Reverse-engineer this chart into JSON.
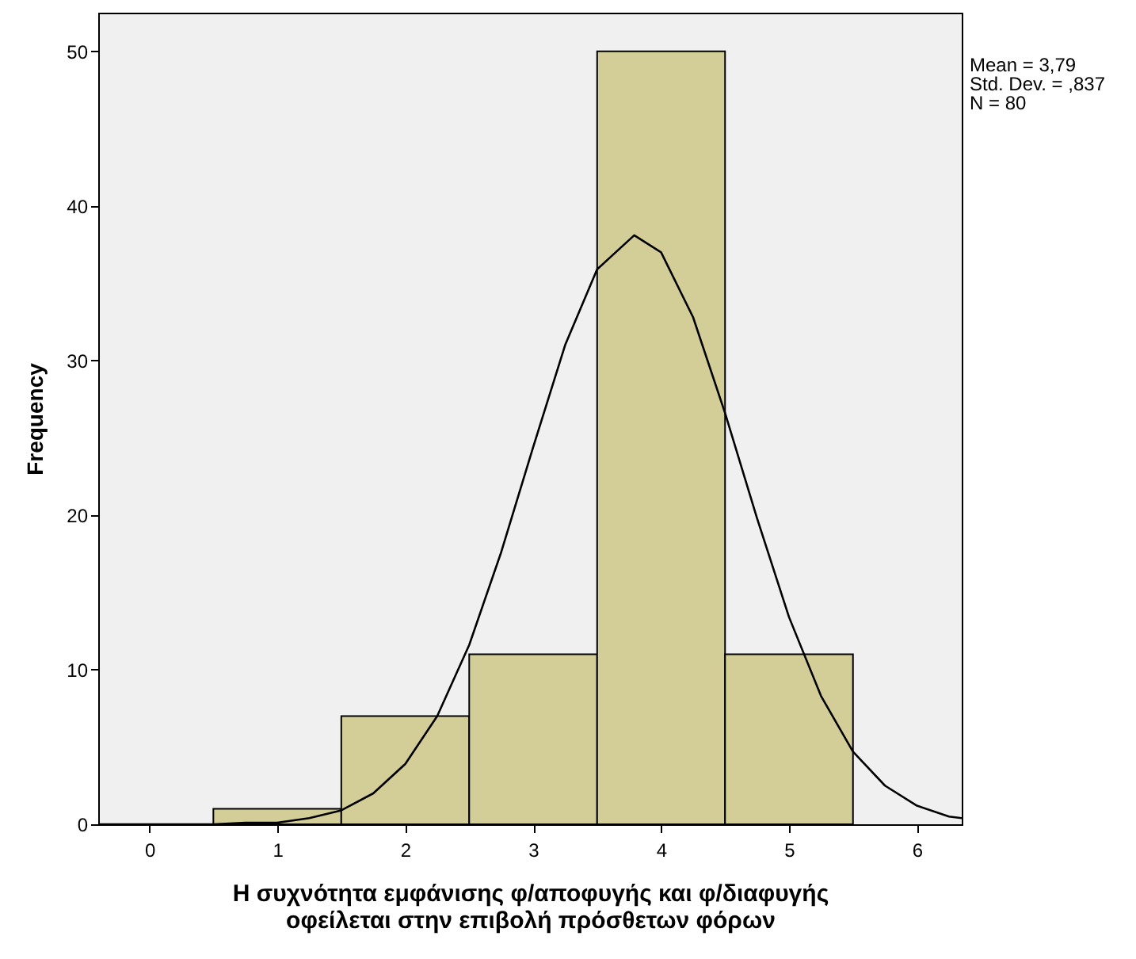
{
  "chart_data": {
    "type": "histogram",
    "xlabel": "Η συχνότητα εμφάνισης  φ/αποφυγής και φ/διαφυγής\nοφείλεται στην επιβολή πρόσθετων φόρων",
    "ylabel": "Frequency",
    "annotations": [
      "Mean = 3,79",
      "Std. Dev. = ,837",
      "N = 80"
    ],
    "bins": [
      0.5,
      1.5,
      2.5,
      3.5,
      4.5,
      5.5
    ],
    "values": [
      1,
      7,
      11,
      50,
      11
    ],
    "color": "#d3ce97",
    "series": [
      {
        "type": "line",
        "color": "#000000",
        "x": [
          -0.4,
          0,
          0.5,
          0.75,
          1,
          1.25,
          1.5,
          1.75,
          2,
          2.25,
          2.5,
          2.75,
          3,
          3.25,
          3.5,
          3.79,
          4,
          4.25,
          4.5,
          4.75,
          5,
          5.25,
          5.5,
          5.75,
          6,
          6.25,
          6.35
        ],
        "values": [
          0,
          0,
          0,
          0.1,
          0.1,
          0.4,
          0.9,
          2,
          3.9,
          7,
          11.6,
          17.6,
          24.4,
          31,
          35.9,
          38.1,
          37,
          32.8,
          26.6,
          19.8,
          13.4,
          8.3,
          4.7,
          2.5,
          1.2,
          0.5,
          0.4
        ]
      }
    ],
    "xlim": [
      -0.4,
      6.35
    ],
    "xticks": [
      0,
      1,
      2,
      3,
      4,
      5,
      6
    ],
    "ylim": [
      0,
      52.5
    ],
    "yticks": [
      0,
      10,
      20,
      30,
      40,
      50
    ],
    "grid": false
  }
}
